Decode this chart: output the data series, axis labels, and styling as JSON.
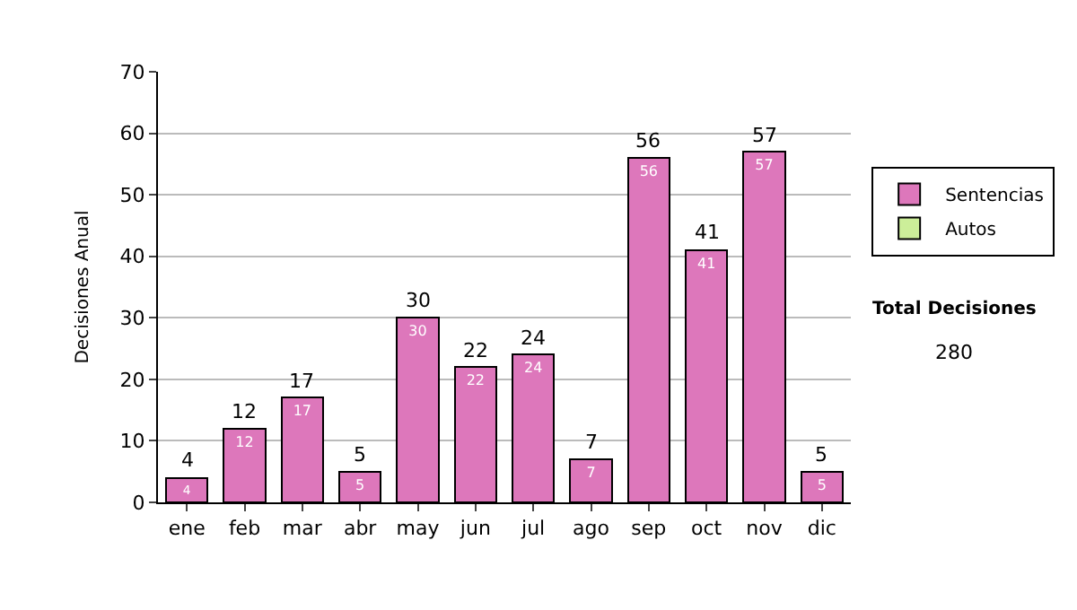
{
  "chart_data": {
    "type": "bar",
    "stacked": true,
    "ylabel": "Decisiones Anual",
    "categories": [
      "ene",
      "feb",
      "mar",
      "abr",
      "may",
      "jun",
      "jul",
      "ago",
      "sep",
      "oct",
      "nov",
      "dic"
    ],
    "series": [
      {
        "name": "Sentencias",
        "color": "#dd77bb",
        "values": [
          4,
          12,
          17,
          5,
          30,
          22,
          24,
          7,
          56,
          41,
          57,
          5
        ],
        "value_labels": [
          "4",
          "12",
          "17",
          "5",
          "30",
          "22",
          "24",
          "7",
          "56",
          "41",
          "57",
          "5"
        ]
      },
      {
        "name": "Autos",
        "color": "#ccee99",
        "values": [
          null,
          null,
          null,
          null,
          null,
          null,
          null,
          null,
          null,
          null,
          null,
          null
        ]
      }
    ],
    "totals": [
      "4",
      "12",
      "17",
      "5",
      "30",
      "22",
      "24",
      "7",
      "56",
      "41",
      "57",
      "5"
    ],
    "ylim": [
      0,
      70
    ],
    "yticks": [
      0,
      10,
      20,
      30,
      40,
      50,
      60,
      70
    ],
    "grid": "y",
    "legend": "right",
    "annotations": [
      "Total Decisiones",
      "280"
    ]
  }
}
